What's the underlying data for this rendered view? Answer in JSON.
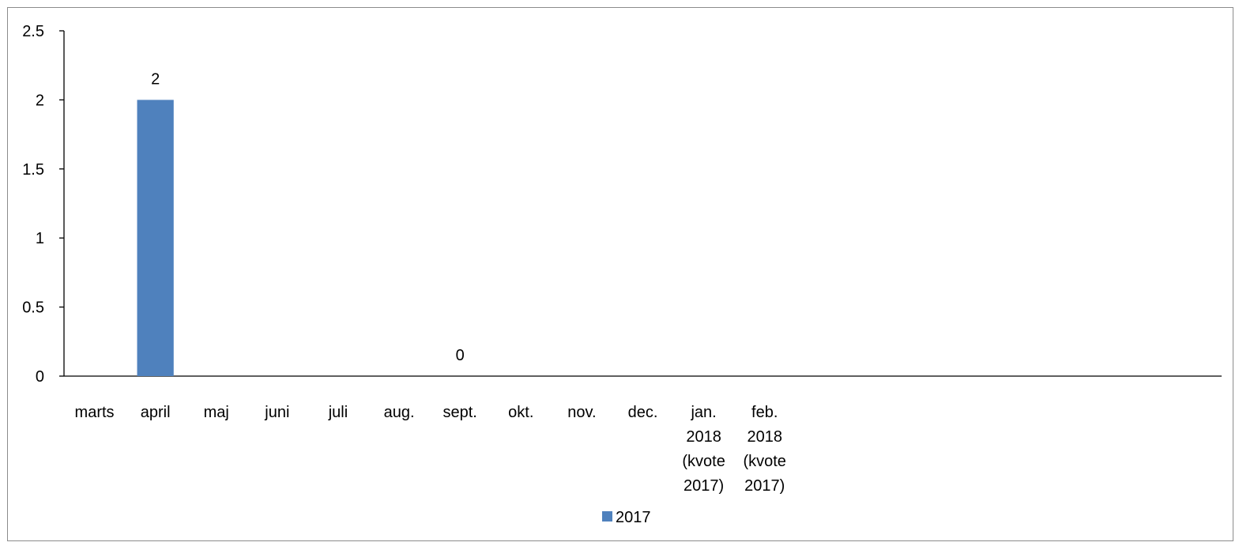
{
  "chart_data": {
    "type": "bar",
    "categories": [
      "marts",
      "april",
      "maj",
      "juni",
      "juli",
      "aug.",
      "sept.",
      "okt.",
      "nov.",
      "dec.",
      "jan. 2018 (kvote 2017)",
      "feb. 2018 (kvote 2017)",
      "",
      "",
      "",
      "",
      "",
      "",
      ""
    ],
    "category_lines": [
      [
        "marts"
      ],
      [
        "april"
      ],
      [
        "maj"
      ],
      [
        "juni"
      ],
      [
        "juli"
      ],
      [
        "aug."
      ],
      [
        "sept."
      ],
      [
        "okt."
      ],
      [
        "nov."
      ],
      [
        "dec."
      ],
      [
        "jan.",
        "2018",
        "(kvote",
        "2017)"
      ],
      [
        "feb.",
        "2018",
        "(kvote",
        "2017)"
      ],
      [],
      [],
      [],
      [],
      [],
      [],
      []
    ],
    "series": [
      {
        "name": "2017",
        "color": "#4f81bd",
        "values": [
          null,
          2,
          null,
          null,
          null,
          null,
          0,
          null,
          null,
          null,
          null,
          null,
          null,
          null,
          null,
          null,
          null,
          null,
          null
        ],
        "data_labels": [
          "",
          "2",
          "",
          "",
          "",
          "",
          "0",
          "",
          "",
          "",
          "",
          "",
          "",
          "",
          "",
          "",
          "",
          "",
          ""
        ]
      }
    ],
    "ylim": [
      0,
      2.5
    ],
    "yticks": [
      "0",
      "0.5",
      "1",
      "1.5",
      "2",
      "2.5"
    ],
    "ytick_values": [
      0,
      0.5,
      1,
      1.5,
      2,
      2.5
    ],
    "grid": false,
    "legend": {
      "position": "bottom",
      "entries": [
        "2017"
      ]
    },
    "title": "",
    "xlabel": "",
    "ylabel": ""
  }
}
